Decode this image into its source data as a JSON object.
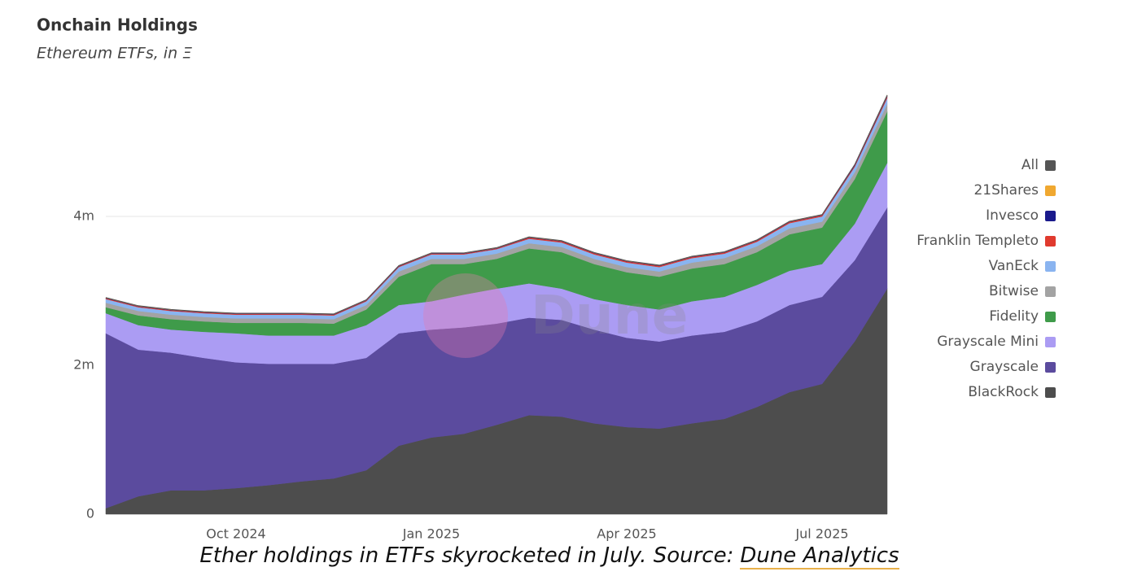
{
  "chart_data": {
    "type": "stacked_area",
    "title": "Onchain Holdings",
    "subtitle": "Ethereum ETFs, in Ξ",
    "watermark": "Dune",
    "categories": [
      null,
      null,
      null,
      null,
      "Oct 2024",
      null,
      null,
      null,
      null,
      null,
      "Jan 2025",
      null,
      null,
      null,
      null,
      null,
      "Apr 2025",
      null,
      null,
      null,
      null,
      null,
      "Jul 2025",
      null,
      null
    ],
    "ylim": [
      0,
      6000000
    ],
    "yticks": [
      0,
      {
        "value": 2000000,
        "label": "2m"
      },
      {
        "value": 4000000,
        "label": "4m"
      }
    ],
    "grid": true,
    "legend": "right",
    "series": [
      {
        "name": "BlackRock",
        "color": "#4d4d4d",
        "values": [
          80000,
          240000,
          320000,
          320000,
          350000,
          390000,
          440000,
          480000,
          590000,
          920000,
          1030000,
          1080000,
          1200000,
          1330000,
          1310000,
          1220000,
          1170000,
          1150000,
          1220000,
          1280000,
          1440000,
          1640000,
          1750000,
          2320000,
          3030000
        ]
      },
      {
        "name": "Grayscale",
        "color": "#5b4b9e",
        "values": [
          2350000,
          1970000,
          1850000,
          1780000,
          1690000,
          1630000,
          1580000,
          1540000,
          1510000,
          1510000,
          1450000,
          1430000,
          1360000,
          1310000,
          1300000,
          1260000,
          1200000,
          1170000,
          1180000,
          1170000,
          1150000,
          1170000,
          1170000,
          1090000,
          1090000
        ]
      },
      {
        "name": "Grayscale Mini",
        "color": "#ab9cf3",
        "values": [
          270000,
          330000,
          310000,
          350000,
          390000,
          380000,
          380000,
          380000,
          440000,
          380000,
          380000,
          440000,
          470000,
          460000,
          420000,
          410000,
          440000,
          430000,
          460000,
          470000,
          490000,
          460000,
          440000,
          490000,
          600000
        ]
      },
      {
        "name": "Fidelity",
        "color": "#3f9b4a",
        "values": [
          80000,
          130000,
          140000,
          140000,
          140000,
          170000,
          170000,
          160000,
          210000,
          380000,
          500000,
          410000,
          400000,
          470000,
          490000,
          470000,
          440000,
          440000,
          440000,
          440000,
          440000,
          490000,
          490000,
          600000,
          690000
        ]
      },
      {
        "name": "Bitwise",
        "color": "#a3a3a3",
        "values": [
          60000,
          60000,
          60000,
          60000,
          60000,
          60000,
          60000,
          60000,
          60000,
          70000,
          70000,
          70000,
          70000,
          70000,
          70000,
          70000,
          70000,
          70000,
          80000,
          80000,
          80000,
          80000,
          80000,
          90000,
          100000
        ]
      },
      {
        "name": "VanEck",
        "color": "#8ab4f0",
        "values": [
          50000,
          50000,
          50000,
          50000,
          50000,
          50000,
          50000,
          50000,
          50000,
          60000,
          60000,
          60000,
          60000,
          60000,
          60000,
          60000,
          60000,
          60000,
          60000,
          60000,
          60000,
          70000,
          70000,
          75000,
          80000
        ]
      },
      {
        "name": "Franklin Templeto",
        "color": "#e03a2e",
        "values": [
          10000,
          10000,
          10000,
          10000,
          10000,
          10000,
          10000,
          10000,
          10000,
          10000,
          10000,
          10000,
          10000,
          15000,
          15000,
          15000,
          15000,
          15000,
          15000,
          15000,
          15000,
          15000,
          15000,
          15000,
          20000
        ]
      },
      {
        "name": "Invesco",
        "color": "#1a1a8c",
        "values": [
          5000,
          5000,
          5000,
          5000,
          5000,
          5000,
          5000,
          5000,
          5000,
          5000,
          5000,
          5000,
          5000,
          5000,
          5000,
          5000,
          5000,
          5000,
          5000,
          5000,
          5000,
          5000,
          5000,
          10000,
          10000
        ]
      },
      {
        "name": "21Shares",
        "color": "#f0a830",
        "values": [
          5000,
          5000,
          5000,
          5000,
          5000,
          5000,
          5000,
          5000,
          5000,
          5000,
          5000,
          5000,
          5000,
          5000,
          5000,
          5000,
          5000,
          5000,
          5000,
          5000,
          5000,
          5000,
          5000,
          5000,
          10000
        ]
      },
      {
        "name": "All",
        "color": "#555555",
        "stacked": false,
        "values": [
          2910000,
          2800000,
          2750000,
          2720000,
          2700000,
          2700000,
          2700000,
          2690000,
          2880000,
          3340000,
          3510000,
          3510000,
          3580000,
          3725000,
          3675000,
          3515000,
          3405000,
          3345000,
          3465000,
          3525000,
          3685000,
          3935000,
          4025000,
          4695000,
          5630000
        ]
      }
    ]
  },
  "caption": {
    "text": "Ether holdings in ETFs skyrocketed in July. Source:",
    "link": "Dune Analytics"
  }
}
